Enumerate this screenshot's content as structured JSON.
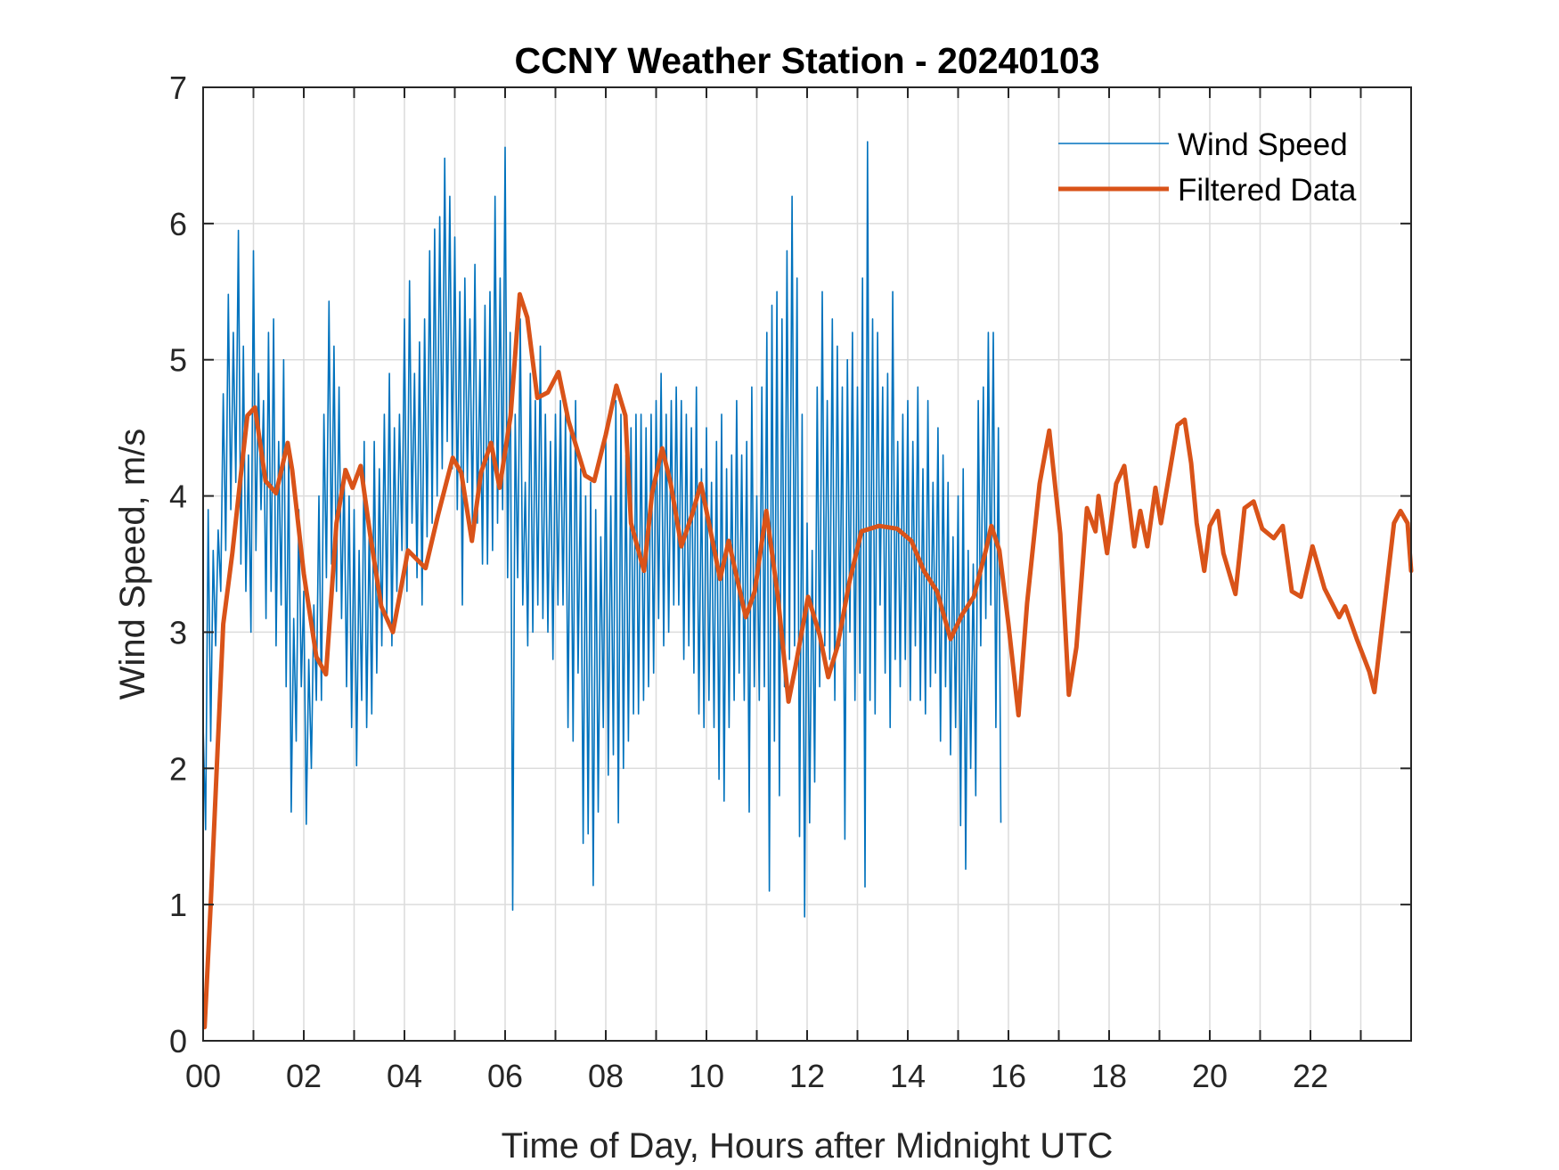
{
  "chart_data": {
    "type": "line",
    "title": "CCNY Weather Station - 20240103",
    "xlabel": "Time of Day, Hours after Midnight UTC",
    "ylabel": "Wind Speed, m/s",
    "xlim": [
      0,
      24
    ],
    "ylim": [
      0,
      7
    ],
    "grid": true,
    "legend_position": "top-right",
    "xticks": [
      0,
      2,
      4,
      6,
      8,
      10,
      12,
      14,
      16,
      18,
      20,
      22
    ],
    "xtick_labels": [
      "00",
      "02",
      "04",
      "06",
      "08",
      "10",
      "12",
      "14",
      "16",
      "18",
      "20",
      "22"
    ],
    "minor_xticks": [
      1,
      3,
      5,
      7,
      9,
      11,
      13,
      15,
      17,
      19,
      21,
      23
    ],
    "yticks": [
      0,
      1,
      2,
      3,
      4,
      5,
      6,
      7
    ],
    "ytick_labels": [
      "0",
      "1",
      "2",
      "3",
      "4",
      "5",
      "6",
      "7"
    ],
    "series": [
      {
        "name": "Wind Speed",
        "color": "#0072BD",
        "x_start": 0,
        "x_step": 0.05,
        "values": [
          2.32,
          1.55,
          3.9,
          2.2,
          3.6,
          2.9,
          3.75,
          3.3,
          4.75,
          3.6,
          5.48,
          3.9,
          5.2,
          4.1,
          5.95,
          3.5,
          5.1,
          3.3,
          4.3,
          3.0,
          5.8,
          3.6,
          4.9,
          3.9,
          4.7,
          3.1,
          5.2,
          3.3,
          5.3,
          2.9,
          4.4,
          3.2,
          5.0,
          2.6,
          4.3,
          1.68,
          3.1,
          2.2,
          3.9,
          2.6,
          3.3,
          1.59,
          2.8,
          2.0,
          3.2,
          2.5,
          4.0,
          2.5,
          4.6,
          3.4,
          5.43,
          3.5,
          5.1,
          3.3,
          4.8,
          3.1,
          4.2,
          2.6,
          4.0,
          2.3,
          3.9,
          2.02,
          3.6,
          2.5,
          4.4,
          2.3,
          3.8,
          2.4,
          4.4,
          2.7,
          4.2,
          2.9,
          4.6,
          3.1,
          4.9,
          2.9,
          4.5,
          3.3,
          4.6,
          3.6,
          5.3,
          3.3,
          5.58,
          3.8,
          4.9,
          3.4,
          5.13,
          3.2,
          5.3,
          3.7,
          5.8,
          3.8,
          5.96,
          4.0,
          6.05,
          4.2,
          6.48,
          4.4,
          6.2,
          4.2,
          5.9,
          3.9,
          5.5,
          3.2,
          5.6,
          4.1,
          5.3,
          3.8,
          5.7,
          3.8,
          5.0,
          3.5,
          5.4,
          3.5,
          5.5,
          3.6,
          6.2,
          3.8,
          5.6,
          3.9,
          6.56,
          3.4,
          5.2,
          0.96,
          4.6,
          3.4,
          5.3,
          3.2,
          4.1,
          2.9,
          4.9,
          3.0,
          4.7,
          3.2,
          5.1,
          3.1,
          4.6,
          3.0,
          4.4,
          2.8,
          4.6,
          3.2,
          4.7,
          3.2,
          4.6,
          2.3,
          4.5,
          2.2,
          4.7,
          2.7,
          4.2,
          1.45,
          4.0,
          1.52,
          4.1,
          1.14,
          3.9,
          1.68,
          3.7,
          2.3,
          4.4,
          1.95,
          4.0,
          2.1,
          4.7,
          1.6,
          4.6,
          2.0,
          4.3,
          2.2,
          4.5,
          2.4,
          4.6,
          2.4,
          4.6,
          2.5,
          4.5,
          2.6,
          4.6,
          2.7,
          4.7,
          3.1,
          4.9,
          2.9,
          4.6,
          3.0,
          4.7,
          3.2,
          4.8,
          3.2,
          4.7,
          2.8,
          4.6,
          2.9,
          4.5,
          2.7,
          4.8,
          2.4,
          4.2,
          2.3,
          4.5,
          2.5,
          4.1,
          2.3,
          4.4,
          1.92,
          4.6,
          1.76,
          4.2,
          2.3,
          4.3,
          2.5,
          4.7,
          2.7,
          4.3,
          2.5,
          4.4,
          1.68,
          4.8,
          2.6,
          4.0,
          2.5,
          4.8,
          2.6,
          5.2,
          1.1,
          5.4,
          2.2,
          5.5,
          1.8,
          5.3,
          2.6,
          5.8,
          2.8,
          6.2,
          2.9,
          5.6,
          1.5,
          4.6,
          0.91,
          3.8,
          1.6,
          3.6,
          1.9,
          4.8,
          2.6,
          5.5,
          2.9,
          4.7,
          2.8,
          5.3,
          2.5,
          5.1,
          2.9,
          4.8,
          1.48,
          5.0,
          3.0,
          5.2,
          2.5,
          4.8,
          2.7,
          5.6,
          1.13,
          6.6,
          2.5,
          5.3,
          2.4,
          5.2,
          3.2,
          4.8,
          2.7,
          4.9,
          2.3,
          5.5,
          2.8,
          4.4,
          2.6,
          4.6,
          2.8,
          4.7,
          2.5,
          4.4,
          2.9,
          4.8,
          2.5,
          4.2,
          2.4,
          4.7,
          2.6,
          4.1,
          2.7,
          4.5,
          2.2,
          4.3,
          2.6,
          4.1,
          2.1,
          3.7,
          2.3,
          4.0,
          1.58,
          4.2,
          1.26,
          3.6,
          2.0,
          3.5,
          1.8,
          4.7,
          2.9,
          4.8,
          3.1,
          5.2,
          3.2,
          5.2,
          2.3,
          4.5,
          1.6
        ]
      },
      {
        "name": "Filtered Data",
        "color": "#D95319",
        "x": [
          0.03,
          0.15,
          0.27,
          0.4,
          0.58,
          0.71,
          0.88,
          1.03,
          1.24,
          1.45,
          1.68,
          1.77,
          2.0,
          2.25,
          2.44,
          2.65,
          2.83,
          2.97,
          3.13,
          3.33,
          3.54,
          3.77,
          4.07,
          4.42,
          4.66,
          4.96,
          5.13,
          5.34,
          5.52,
          5.72,
          5.89,
          6.11,
          6.29,
          6.44,
          6.64,
          6.85,
          7.06,
          7.26,
          7.59,
          7.77,
          8.0,
          8.21,
          8.39,
          8.5,
          8.76,
          8.92,
          9.12,
          9.29,
          9.5,
          9.72,
          9.89,
          10.12,
          10.27,
          10.44,
          10.78,
          10.96,
          11.19,
          11.42,
          11.63,
          11.77,
          12.02,
          12.25,
          12.42,
          12.6,
          12.84,
          13.08,
          13.43,
          13.79,
          14.07,
          14.32,
          14.58,
          14.85,
          15.08,
          15.31,
          15.55,
          15.66,
          15.82,
          16.0,
          16.2,
          16.37,
          16.62,
          16.81,
          17.03,
          17.2,
          17.35,
          17.56,
          17.73,
          17.79,
          17.96,
          18.14,
          18.3,
          18.5,
          18.62,
          18.76,
          18.92,
          19.03,
          19.2,
          19.36,
          19.5,
          19.63,
          19.74,
          19.89,
          20.0,
          20.16,
          20.27,
          20.51,
          20.69,
          20.87,
          21.04,
          21.27,
          21.45,
          21.63,
          21.81,
          22.04,
          22.28,
          22.57,
          22.69,
          22.92,
          23.17,
          23.27,
          23.45,
          23.66,
          23.79,
          23.93,
          24.0
        ],
        "values": [
          0.1,
          1.0,
          2.0,
          3.06,
          3.58,
          4.02,
          4.59,
          4.65,
          4.11,
          4.02,
          4.39,
          4.19,
          3.43,
          2.82,
          2.69,
          3.8,
          4.19,
          4.06,
          4.22,
          3.69,
          3.19,
          3.0,
          3.6,
          3.47,
          3.85,
          4.28,
          4.17,
          3.67,
          4.17,
          4.39,
          4.06,
          4.59,
          5.48,
          5.31,
          4.72,
          4.76,
          4.91,
          4.55,
          4.15,
          4.11,
          4.45,
          4.81,
          4.59,
          3.8,
          3.45,
          4.02,
          4.35,
          4.09,
          3.63,
          3.87,
          4.09,
          3.67,
          3.39,
          3.67,
          3.11,
          3.3,
          3.89,
          3.26,
          2.49,
          2.75,
          3.26,
          2.98,
          2.67,
          2.89,
          3.37,
          3.74,
          3.78,
          3.76,
          3.67,
          3.45,
          3.3,
          2.95,
          3.13,
          3.26,
          3.6,
          3.78,
          3.6,
          3.06,
          2.39,
          3.21,
          4.09,
          4.48,
          3.72,
          2.54,
          2.89,
          3.91,
          3.74,
          4.0,
          3.58,
          4.09,
          4.22,
          3.63,
          3.89,
          3.63,
          4.06,
          3.8,
          4.17,
          4.52,
          4.56,
          4.24,
          3.8,
          3.45,
          3.78,
          3.89,
          3.58,
          3.28,
          3.91,
          3.96,
          3.76,
          3.69,
          3.78,
          3.3,
          3.26,
          3.63,
          3.32,
          3.11,
          3.19,
          2.95,
          2.71,
          2.56,
          3.13,
          3.8,
          3.89,
          3.8,
          3.45
        ]
      }
    ]
  }
}
